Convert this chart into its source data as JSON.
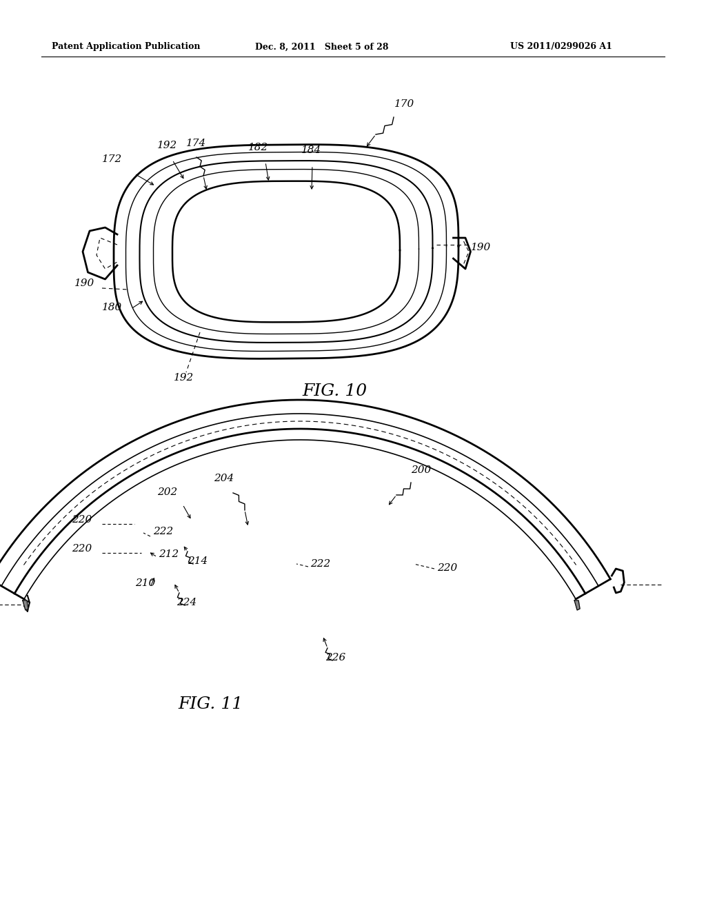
{
  "header_left": "Patent Application Publication",
  "header_middle": "Dec. 8, 2011   Sheet 5 of 28",
  "header_right": "US 2011/0299026 A1",
  "fig10_label": "FIG. 10",
  "fig11_label": "FIG. 11",
  "bg_color": "#ffffff",
  "line_color": "#000000"
}
